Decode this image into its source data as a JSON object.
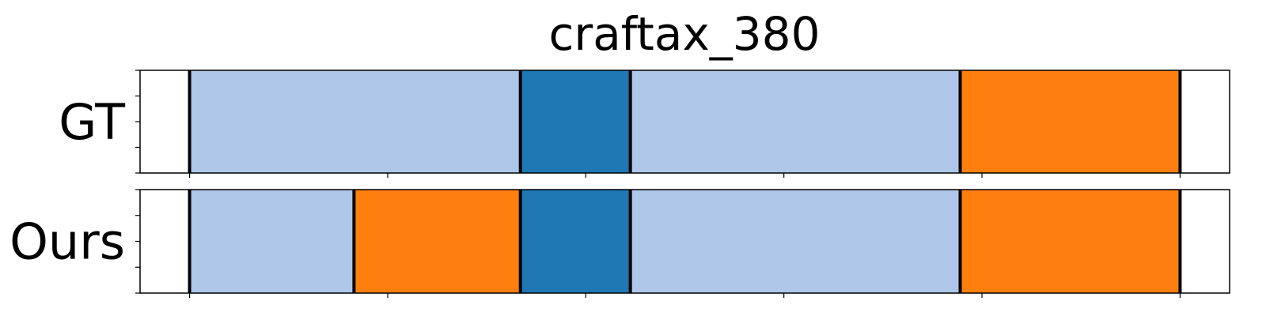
{
  "chart_data": {
    "type": "segmentation-timeline",
    "title": "craftax_380",
    "x_range": [
      0,
      110
    ],
    "x_ticks": [
      5,
      25,
      45,
      65,
      85,
      105
    ],
    "rows": [
      {
        "label": "GT",
        "segments": [
          {
            "start": 5,
            "end": 38.4,
            "color": "#aec7e8"
          },
          {
            "start": 38.4,
            "end": 49.5,
            "color": "#1f77b4"
          },
          {
            "start": 49.5,
            "end": 82.8,
            "color": "#aec7e8"
          },
          {
            "start": 82.8,
            "end": 105,
            "color": "#ff7f0e"
          }
        ]
      },
      {
        "label": "Ours",
        "segments": [
          {
            "start": 5,
            "end": 21.6,
            "color": "#aec7e8"
          },
          {
            "start": 21.6,
            "end": 38.4,
            "color": "#ff7f0e"
          },
          {
            "start": 38.4,
            "end": 49.5,
            "color": "#1f77b4"
          },
          {
            "start": 49.5,
            "end": 82.8,
            "color": "#aec7e8"
          },
          {
            "start": 82.8,
            "end": 105,
            "color": "#ff7f0e"
          }
        ]
      }
    ]
  }
}
